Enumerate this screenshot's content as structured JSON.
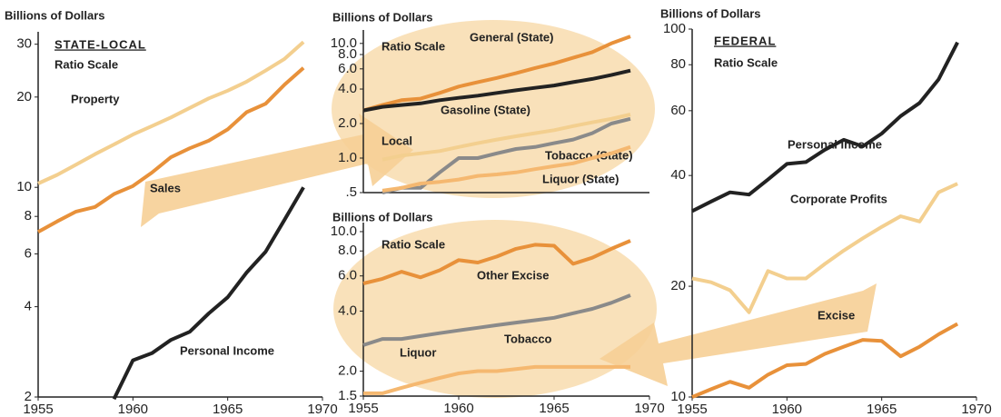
{
  "chart_data": [
    {
      "type": "line",
      "y_label": "Billions of Dollars",
      "title": "STATE-LOCAL",
      "annotation": "Ratio Scale",
      "log_scale": true,
      "x": [
        1955,
        1956,
        1957,
        1958,
        1959,
        1960,
        1961,
        1962,
        1963,
        1964,
        1965,
        1966,
        1967,
        1968,
        1969
      ],
      "xlim": [
        1955,
        1970
      ],
      "xticks": [
        1955,
        1960,
        1965,
        1970
      ],
      "ylim": [
        2,
        33
      ],
      "yticks": [
        2,
        4,
        6,
        8,
        10,
        20,
        30
      ],
      "series": [
        {
          "name": "Property",
          "color": "#f3cf8f",
          "values": [
            10.3,
            11.0,
            11.9,
            12.9,
            13.9,
            15.0,
            16.0,
            17.1,
            18.4,
            19.8,
            21.0,
            22.5,
            24.5,
            26.8,
            30.5
          ]
        },
        {
          "name": "Sales",
          "color": "#e8913a",
          "values": [
            7.1,
            7.7,
            8.3,
            8.6,
            9.5,
            10.1,
            11.2,
            12.6,
            13.5,
            14.3,
            15.6,
            17.8,
            19.0,
            22.0,
            25.0
          ]
        },
        {
          "name": "Personal Income",
          "color": "#222222",
          "values": [
            null,
            null,
            null,
            null,
            1.97,
            2.65,
            2.8,
            3.1,
            3.3,
            3.8,
            4.3,
            5.2,
            6.1,
            7.8,
            10.0
          ]
        }
      ]
    },
    {
      "type": "line",
      "y_label": "Billions of Dollars",
      "annotation": "Ratio Scale",
      "log_scale": true,
      "x": [
        1955,
        1956,
        1957,
        1958,
        1959,
        1960,
        1961,
        1962,
        1963,
        1964,
        1965,
        1966,
        1967,
        1968,
        1969
      ],
      "xlim": [
        1955,
        1970
      ],
      "ylim": [
        0.5,
        13.1
      ],
      "yticks": [
        {
          "value": 0.5,
          "label": ".5"
        },
        {
          "value": 1,
          "label": "1.0"
        },
        {
          "value": 2,
          "label": "2.0"
        },
        {
          "value": 4,
          "label": "4.0"
        },
        {
          "value": 6,
          "label": "6.0"
        },
        {
          "value": 8,
          "label": "8.0"
        },
        {
          "value": 10,
          "label": "10.0"
        }
      ],
      "series": [
        {
          "name": "General (State)",
          "color": "#e8913a",
          "values": [
            2.6,
            2.9,
            3.2,
            3.3,
            3.7,
            4.2,
            4.6,
            5.0,
            5.5,
            6.1,
            6.7,
            7.5,
            8.4,
            10.0,
            11.5
          ]
        },
        {
          "name": "Gasoline (State)",
          "color": "#222222",
          "values": [
            2.6,
            2.8,
            2.9,
            3.0,
            3.2,
            3.35,
            3.5,
            3.7,
            3.9,
            4.1,
            4.3,
            4.6,
            4.9,
            5.3,
            5.8
          ]
        },
        {
          "name": "Local",
          "color": "#f3cf8f",
          "values": [
            null,
            0.97,
            1.05,
            1.1,
            1.15,
            1.25,
            1.35,
            1.45,
            1.55,
            1.65,
            1.75,
            1.9,
            2.05,
            2.2,
            2.4
          ]
        },
        {
          "name": "Tobacco (State)",
          "color": "#8a8a8a",
          "values": [
            null,
            0.5,
            0.55,
            0.55,
            0.75,
            1.0,
            1.0,
            1.1,
            1.2,
            1.25,
            1.35,
            1.45,
            1.65,
            2.0,
            2.2
          ]
        },
        {
          "name": "Liquor (State)",
          "color": "#f5b870",
          "values": [
            null,
            0.52,
            0.55,
            0.6,
            0.62,
            0.65,
            0.7,
            0.72,
            0.75,
            0.8,
            0.85,
            0.9,
            1.0,
            1.1,
            1.25
          ]
        }
      ]
    },
    {
      "type": "line",
      "y_label": "Billions of Dollars",
      "annotation": "Ratio Scale",
      "log_scale": true,
      "x": [
        1955,
        1956,
        1957,
        1958,
        1959,
        1960,
        1961,
        1962,
        1963,
        1964,
        1965,
        1966,
        1967,
        1968,
        1969
      ],
      "xlim": [
        1955,
        1970
      ],
      "xticks": [
        1955,
        1960,
        1965,
        1970
      ],
      "ylim": [
        1.5,
        11.1
      ],
      "yticks": [
        1.5,
        {
          "value": 2,
          "label": "2.0"
        },
        {
          "value": 4,
          "label": "4.0"
        },
        {
          "value": 6,
          "label": "6.0"
        },
        {
          "value": 8,
          "label": "8.0"
        },
        {
          "value": 10,
          "label": "10.0"
        }
      ],
      "series": [
        {
          "name": "Other Excise",
          "color": "#e8913a",
          "values": [
            5.5,
            5.8,
            6.3,
            5.9,
            6.4,
            7.2,
            7.0,
            7.5,
            8.2,
            8.6,
            8.5,
            6.9,
            7.4,
            8.2,
            9.0
          ]
        },
        {
          "name": "Tobacco",
          "color": "#8a8a8a",
          "values": [
            2.7,
            2.9,
            2.9,
            3.0,
            3.1,
            3.2,
            3.3,
            3.4,
            3.5,
            3.6,
            3.7,
            3.9,
            4.1,
            4.4,
            4.8
          ]
        },
        {
          "name": "Liquor",
          "color": "#f5b870",
          "values": [
            1.55,
            1.55,
            1.65,
            1.75,
            1.85,
            1.95,
            2.0,
            2.0,
            2.05,
            2.1,
            2.1,
            2.1,
            2.1,
            2.1,
            2.1
          ]
        }
      ]
    },
    {
      "type": "line",
      "y_label": "Billions of Dollars",
      "title": "FEDERAL",
      "annotation": "Ratio Scale",
      "log_scale": true,
      "x": [
        1955,
        1956,
        1957,
        1958,
        1959,
        1960,
        1961,
        1962,
        1963,
        1964,
        1965,
        1966,
        1967,
        1968,
        1969
      ],
      "xlim": [
        1955,
        1970
      ],
      "xticks": [
        1955,
        1960,
        1965,
        1970
      ],
      "ylim": [
        10,
        100
      ],
      "yticks": [
        10,
        20,
        40,
        60,
        80,
        100
      ],
      "series": [
        {
          "name": "Personal Income",
          "color": "#222222",
          "values": [
            32,
            34,
            36,
            35.5,
            39,
            43,
            43.5,
            47,
            50,
            48,
            52,
            58,
            63,
            73,
            92
          ]
        },
        {
          "name": "Corporate Profits",
          "color": "#f3cf8f",
          "values": [
            21,
            20.5,
            19.5,
            17,
            22,
            21,
            21,
            23,
            25,
            27,
            29,
            31,
            30,
            36,
            38
          ]
        },
        {
          "name": "Excise",
          "color": "#e8913a",
          "values": [
            10,
            10.5,
            11,
            10.6,
            11.5,
            12.2,
            12.3,
            13.1,
            13.7,
            14.3,
            14.2,
            12.9,
            13.7,
            14.8,
            15.8
          ]
        }
      ]
    }
  ]
}
